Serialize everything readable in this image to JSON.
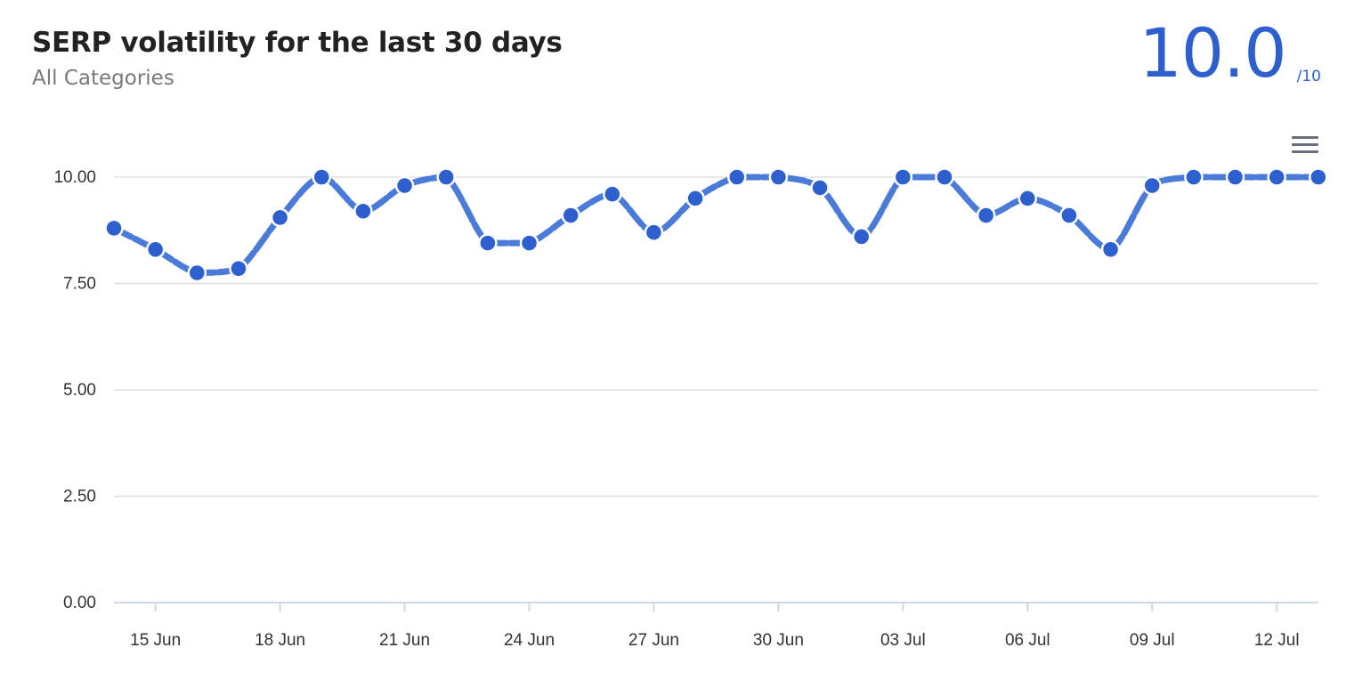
{
  "header": {
    "title": "SERP volatility for the last 30 days",
    "subtitle": "All Categories",
    "score_value": "10.0",
    "score_max": "/10"
  },
  "menu": {
    "icon": "hamburger-menu-icon"
  },
  "colors": {
    "line": "#4a7bd9",
    "marker": "#2d5fcf",
    "score": "#2d5fcf",
    "grid": "#e0e0e0"
  },
  "chart_data": {
    "type": "line",
    "title": "SERP volatility for the last 30 days",
    "subtitle": "All Categories",
    "xlabel": "",
    "ylabel": "",
    "ylim": [
      0,
      10
    ],
    "y_ticks": [
      "0.00",
      "2.50",
      "5.00",
      "7.50",
      "10.00"
    ],
    "x_tick_labels": [
      "15 Jun",
      "18 Jun",
      "21 Jun",
      "24 Jun",
      "27 Jun",
      "30 Jun",
      "03 Jul",
      "06 Jul",
      "09 Jul",
      "12 Jul"
    ],
    "grid": true,
    "legend": "none",
    "series": [
      {
        "x": [
          "14 Jun",
          "15 Jun",
          "16 Jun",
          "17 Jun",
          "18 Jun",
          "19 Jun",
          "20 Jun",
          "21 Jun",
          "22 Jun",
          "23 Jun",
          "24 Jun",
          "25 Jun",
          "26 Jun",
          "27 Jun",
          "28 Jun",
          "29 Jun",
          "30 Jun",
          "01 Jul",
          "02 Jul",
          "03 Jul",
          "04 Jul",
          "05 Jul",
          "06 Jul",
          "07 Jul",
          "08 Jul",
          "09 Jul",
          "10 Jul",
          "11 Jul",
          "12 Jul",
          "13 Jul"
        ],
        "values": [
          8.8,
          8.3,
          7.75,
          7.85,
          9.05,
          10.0,
          9.2,
          9.8,
          10.0,
          8.45,
          8.45,
          9.1,
          9.6,
          8.7,
          9.5,
          10.0,
          10.0,
          9.75,
          8.6,
          10.0,
          10.0,
          9.1,
          9.5,
          9.1,
          8.3,
          9.8,
          10.0,
          10.0,
          10.0,
          10.0
        ]
      }
    ]
  }
}
